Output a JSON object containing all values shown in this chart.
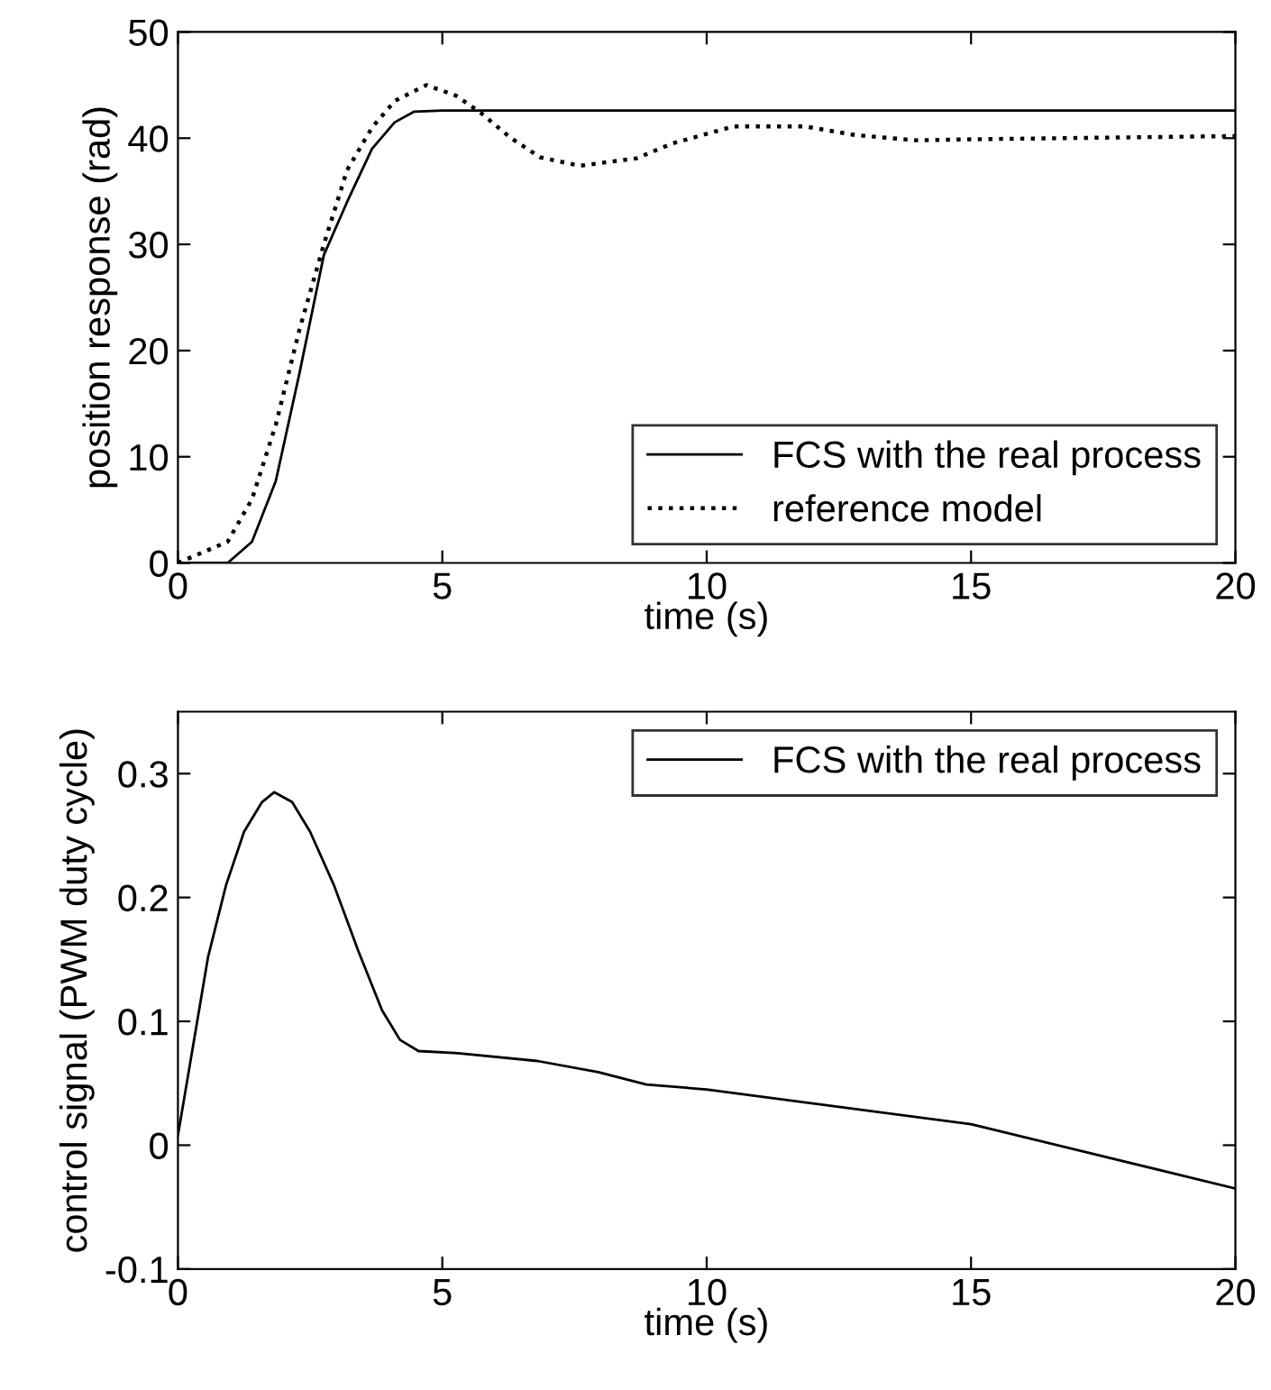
{
  "chart_data": [
    {
      "type": "line",
      "xlabel": "time (s)",
      "ylabel": "position response (rad)",
      "xlim": [
        0,
        20
      ],
      "xticks": [
        0,
        5,
        10,
        15,
        20
      ],
      "ylim": [
        0,
        50
      ],
      "yticks": [
        0,
        10,
        20,
        30,
        40,
        50
      ],
      "grid": false,
      "legend": "bottom right",
      "series": [
        {
          "name": "FCS with the real process",
          "color": "#000000",
          "line_style": "solid",
          "x": [
            0,
            0.94,
            1.4,
            1.85,
            2.3,
            2.76,
            3.2,
            3.67,
            4.1,
            4.47,
            5,
            8,
            12,
            16,
            20
          ],
          "values": [
            0,
            0,
            2,
            7.7,
            17.9,
            29,
            34,
            39,
            41.5,
            42.5,
            42.6,
            42.6,
            42.6,
            42.6,
            42.6
          ]
        },
        {
          "name": "reference model",
          "color": "#000000",
          "line_style": "dotted",
          "x": [
            0,
            0.94,
            1.4,
            1.85,
            2.3,
            2.76,
            3.2,
            3.67,
            4.1,
            4.7,
            5.26,
            5.7,
            6.3,
            6.85,
            7.6,
            8.67,
            9.35,
            10.5,
            11.87,
            12.8,
            13.95,
            15.1,
            20
          ],
          "values": [
            0,
            2,
            6,
            13,
            22,
            30,
            37,
            41,
            43.5,
            45,
            44,
            42.5,
            40,
            38.2,
            37.4,
            38.1,
            39.5,
            41.1,
            41.1,
            40.3,
            39.8,
            39.9,
            40.2
          ]
        }
      ]
    },
    {
      "type": "line",
      "xlabel": "time (s)",
      "ylabel": "control signal (PWM duty cycle)",
      "xlim": [
        0,
        20
      ],
      "xticks": [
        0,
        5,
        10,
        15,
        20
      ],
      "ylim": [
        -0.1,
        0.35
      ],
      "yticks": [
        -0.1,
        0,
        0.1,
        0.2,
        0.3
      ],
      "grid": false,
      "legend": "top right",
      "series": [
        {
          "name": "FCS with the real process",
          "color": "#000000",
          "line_style": "solid",
          "x": [
            0,
            0.23,
            0.57,
            0.91,
            1.25,
            1.59,
            1.82,
            2.16,
            2.5,
            2.95,
            3.41,
            3.86,
            4.2,
            4.55,
            5.23,
            6.8,
            7.95,
            8.86,
            10,
            15,
            20
          ],
          "values": [
            0.008,
            0.066,
            0.152,
            0.21,
            0.253,
            0.277,
            0.285,
            0.277,
            0.253,
            0.21,
            0.157,
            0.109,
            0.085,
            0.076,
            0.0745,
            0.068,
            0.059,
            0.049,
            0.045,
            0.017,
            -0.035
          ]
        }
      ]
    }
  ]
}
